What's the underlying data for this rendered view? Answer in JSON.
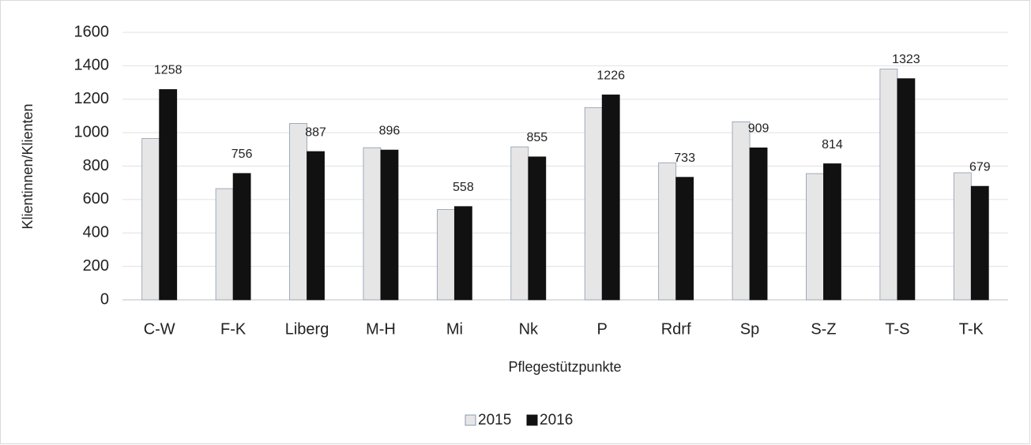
{
  "chart_data": {
    "type": "bar",
    "x_label": "Pflegestützpunkte",
    "y_label": "Klientinnen/Klienten",
    "categories": [
      "C-W",
      "F-K",
      "Liberg",
      "M-H",
      "Mi",
      "Nk",
      "P",
      "Rdrf",
      "Sp",
      "S-Z",
      "T-S",
      "T-K"
    ],
    "series": [
      {
        "name": "2015",
        "color": "#e7e6e6",
        "values": [
          965,
          665,
          1055,
          910,
          540,
          915,
          1150,
          820,
          1065,
          755,
          1380,
          760
        ]
      },
      {
        "name": "2016",
        "color": "#111111",
        "data_labels": true,
        "values": [
          1258,
          756,
          887,
          896,
          558,
          855,
          1226,
          733,
          909,
          814,
          1323,
          679
        ]
      }
    ],
    "ylim": [
      0,
      1600
    ],
    "yticks": [
      0,
      200,
      400,
      600,
      800,
      1000,
      1200,
      1400,
      1600
    ],
    "grid": true,
    "legend": "bottom"
  }
}
